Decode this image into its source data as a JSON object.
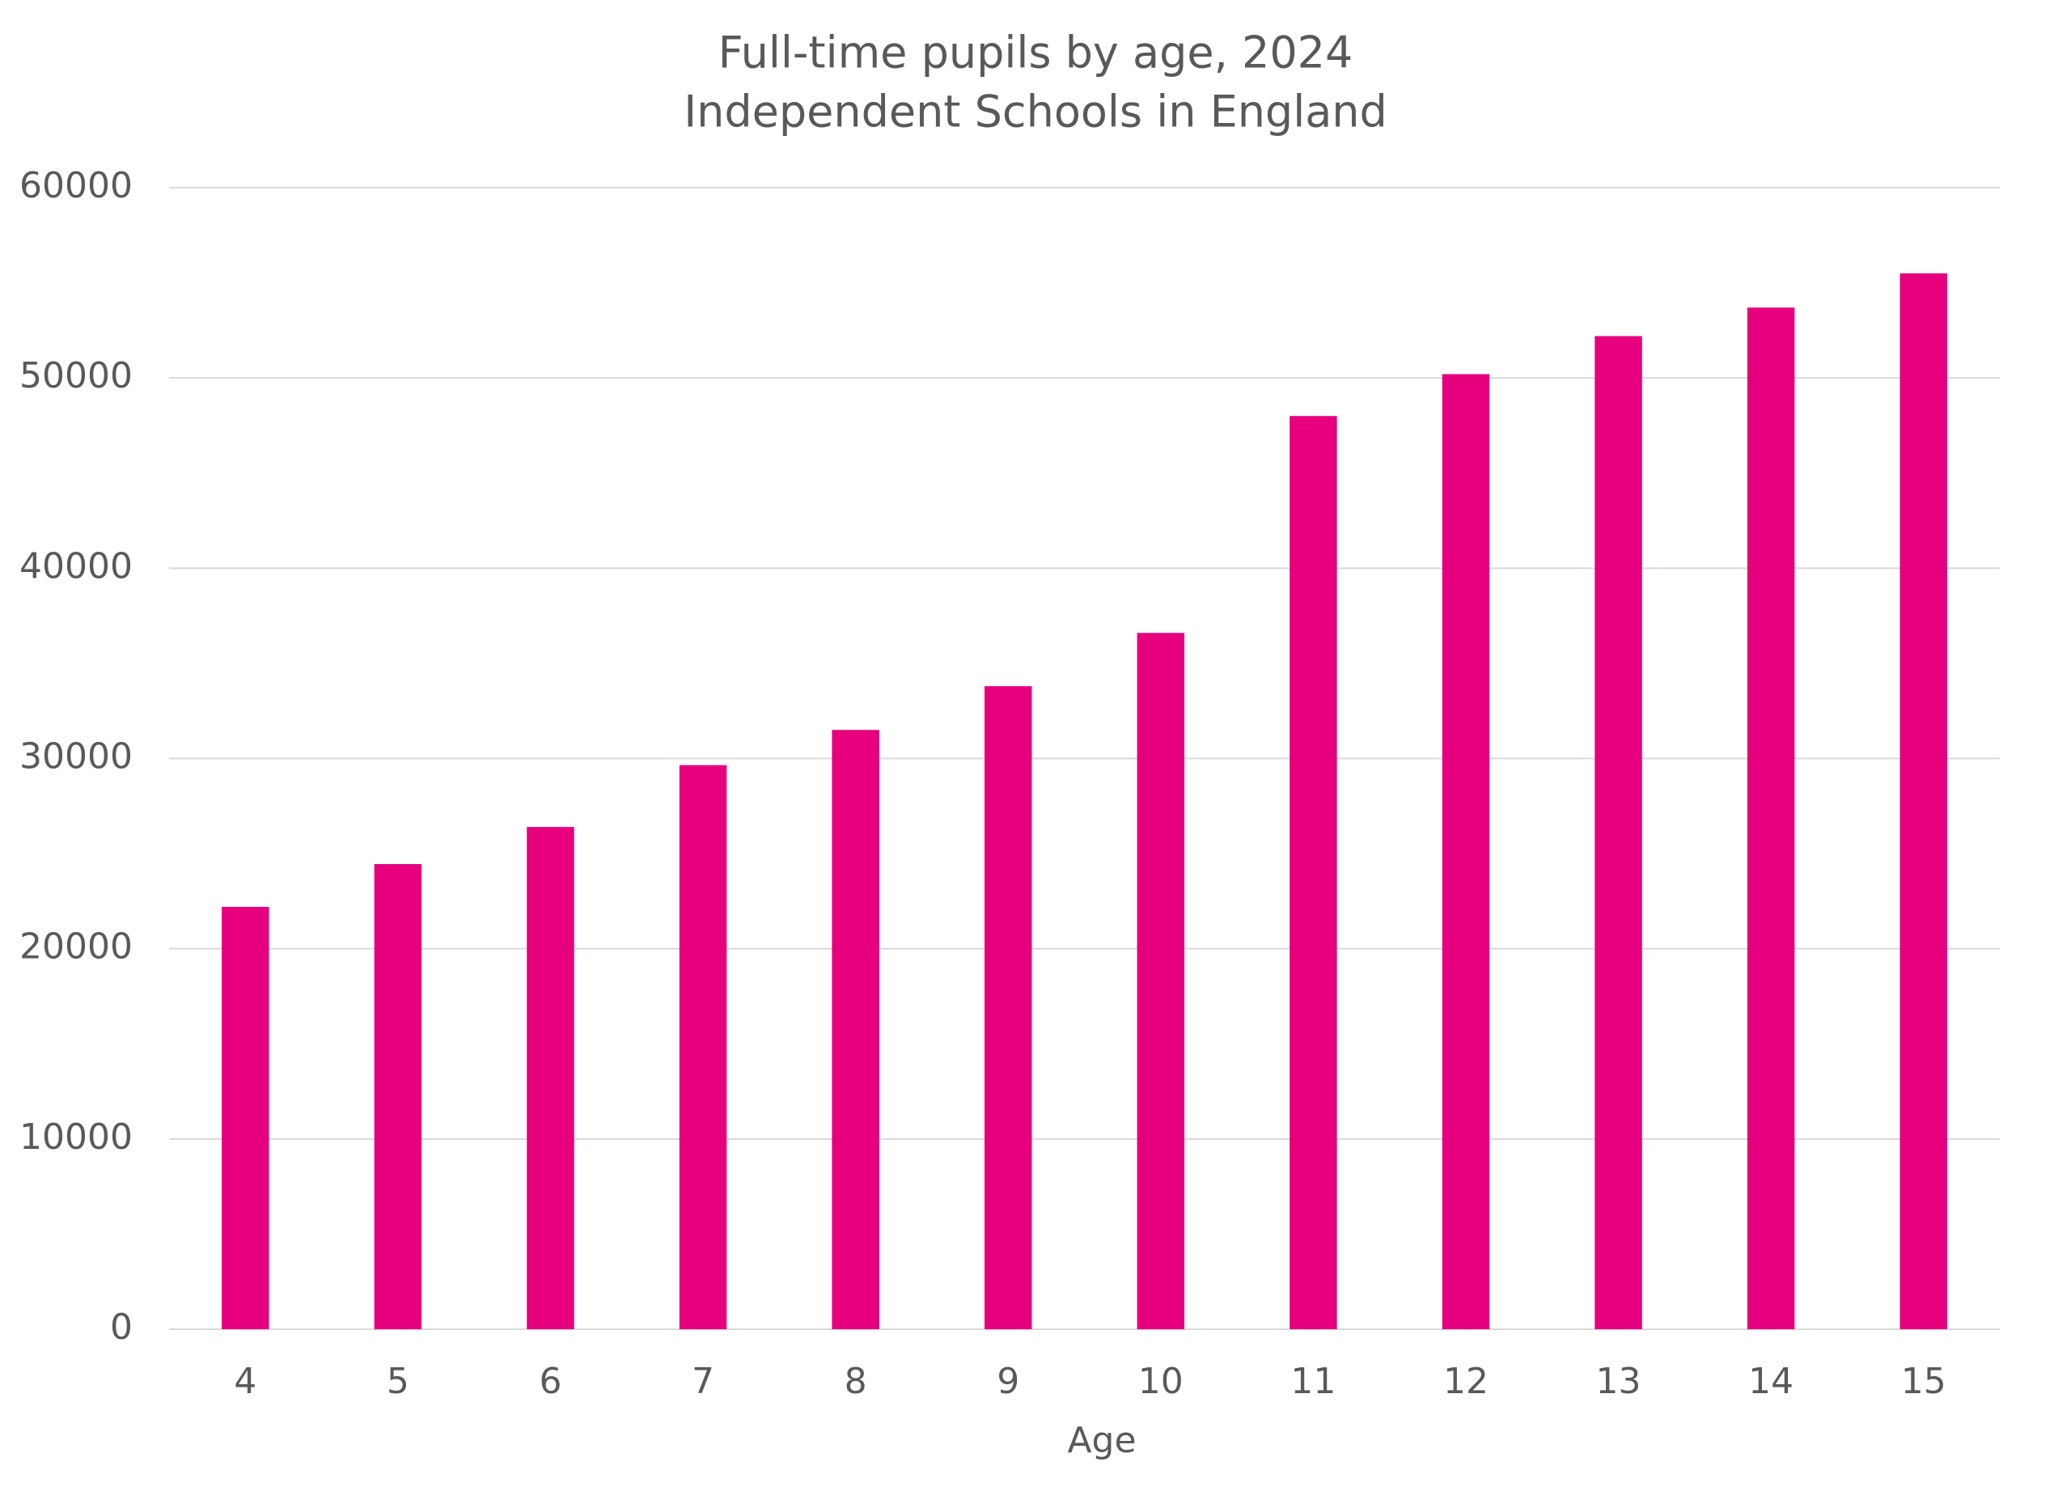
{
  "chart_data": {
    "type": "bar",
    "title": "Full-time pupils by age, 2024",
    "subtitle": "Independent Schools in England",
    "x_label": "Age",
    "categories": [
      "4",
      "5",
      "6",
      "7",
      "8",
      "9",
      "10",
      "11",
      "12",
      "13",
      "14",
      "15"
    ],
    "values": [
      22200,
      24450,
      26400,
      29650,
      31500,
      33800,
      36600,
      48000,
      50200,
      52200,
      53700,
      55500
    ],
    "color": "#e6007e",
    "ylim": [
      0,
      60000
    ],
    "yticks": [
      0,
      10000,
      20000,
      30000,
      40000,
      50000,
      60000
    ],
    "grid": true
  }
}
